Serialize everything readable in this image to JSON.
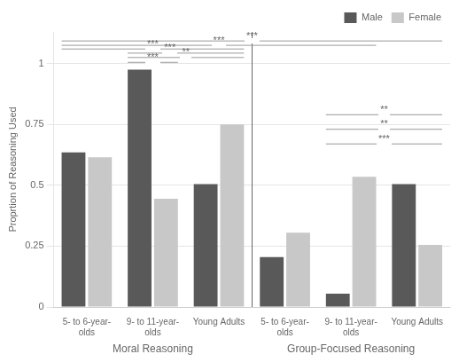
{
  "chart_data": {
    "type": "bar",
    "categories": [
      "5- to 6-year-\nolds",
      "9- to 11-year-\nolds",
      "Young Adults",
      "5- to 6-year-\nolds",
      "9- to 11-year-\nolds",
      "Young Adults"
    ],
    "series": [
      {
        "name": "Male",
        "color": "#595959",
        "values": [
          0.635,
          0.975,
          0.505,
          0.205,
          0.055,
          0.505
        ]
      },
      {
        "name": "Female",
        "color": "#c8c8c8",
        "values": [
          0.615,
          0.445,
          0.75,
          0.305,
          0.535,
          0.255
        ]
      }
    ],
    "ylabel": "Proprtion of Reasoning Used",
    "ylim": [
      0,
      1.13
    ],
    "yticks": [
      0,
      0.25,
      0.5,
      0.75,
      1
    ],
    "grid": true,
    "legend": "upper right",
    "group_labels": [
      {
        "text": "Moral Reasoning",
        "categories": [
          0,
          1,
          2
        ]
      },
      {
        "text": "Group-Focused Reasoning",
        "categories": [
          3,
          4,
          5
        ]
      }
    ],
    "annotations": [
      {
        "text": "***",
        "from": 1,
        "to": 1,
        "y": 1.005,
        "color": "#999999"
      },
      {
        "text": "**",
        "from": 1,
        "to": 2,
        "y": 1.025,
        "color": "#999999"
      },
      {
        "text": "***",
        "from": 1,
        "to": 2,
        "y": 1.043,
        "color": "#999999"
      },
      {
        "text": "***",
        "from": 0,
        "to": 2,
        "y": 1.06,
        "color": "#999999"
      },
      {
        "text": "***",
        "from": 0,
        "to": 4,
        "y": 1.075,
        "color": "#999999"
      },
      {
        "text": "***",
        "from": 0,
        "to": 5,
        "y": 1.093,
        "color": "#999999"
      },
      {
        "text": "**",
        "from": 4,
        "to": 5,
        "y": 0.79,
        "color": "#999999"
      },
      {
        "text": "**",
        "from": 4,
        "to": 5,
        "y": 0.73,
        "color": "#999999"
      },
      {
        "text": "***",
        "from": 4,
        "to": 5,
        "y": 0.67,
        "color": "#999999"
      }
    ]
  }
}
